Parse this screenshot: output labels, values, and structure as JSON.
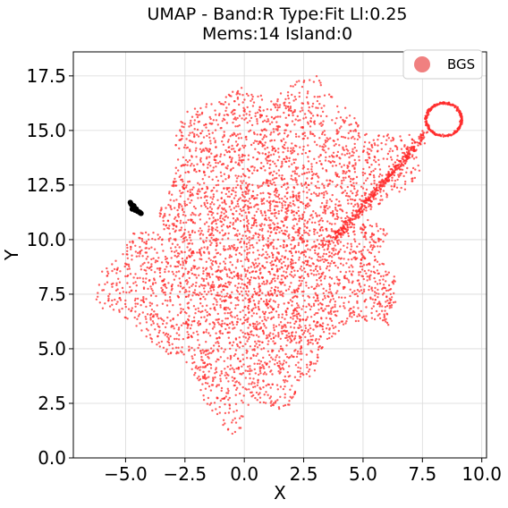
{
  "chart_data": {
    "type": "scatter",
    "title": [
      "UMAP  -  Band:R Type:Fit Ll:0.25",
      "Mems:14 Island:0"
    ],
    "xlabel": "X",
    "ylabel": "Y",
    "xlim": [
      -7.2,
      10.2
    ],
    "ylim": [
      0,
      18.6
    ],
    "x_ticks": [
      -5.0,
      -2.5,
      0.0,
      2.5,
      5.0,
      7.5,
      10.0
    ],
    "x_tick_labels": [
      "−5.0",
      "−2.5",
      "0.0",
      "2.5",
      "5.0",
      "7.5",
      "10.0"
    ],
    "y_ticks": [
      0.0,
      2.5,
      5.0,
      7.5,
      10.0,
      12.5,
      15.0,
      17.5
    ],
    "y_tick_labels": [
      "0.0",
      "2.5",
      "5.0",
      "7.5",
      "10.0",
      "12.5",
      "15.0",
      "17.5"
    ],
    "grid": true,
    "legend": {
      "position": "top-right",
      "entries": [
        {
          "label": "BGS",
          "color": "#f08080"
        }
      ]
    },
    "series": [
      {
        "name": "BGS",
        "color": "#ff2a2a",
        "point_count_approx": 4500,
        "region_polygon": [
          [
            -6.3,
            6.9
          ],
          [
            -6.3,
            8.4
          ],
          [
            -5.2,
            9.2
          ],
          [
            -4.7,
            10.3
          ],
          [
            -3.4,
            10.4
          ],
          [
            -3.6,
            11.2
          ],
          [
            -3.0,
            12.7
          ],
          [
            -2.8,
            13.7
          ],
          [
            -3.1,
            14.8
          ],
          [
            -2.6,
            15.6
          ],
          [
            -2.4,
            16.0
          ],
          [
            -1.3,
            16.4
          ],
          [
            -0.3,
            17.1
          ],
          [
            0.2,
            17.3
          ],
          [
            0.9,
            16.4
          ],
          [
            1.6,
            16.8
          ],
          [
            2.3,
            17.3
          ],
          [
            3.1,
            17.5
          ],
          [
            3.7,
            16.6
          ],
          [
            4.3,
            16.2
          ],
          [
            5.0,
            14.9
          ],
          [
            6.0,
            14.9
          ],
          [
            7.1,
            14.8
          ],
          [
            7.3,
            13.8
          ],
          [
            7.4,
            13.0
          ],
          [
            6.8,
            12.3
          ],
          [
            6.0,
            11.8
          ],
          [
            5.0,
            11.0
          ],
          [
            6.2,
            10.4
          ],
          [
            5.6,
            9.1
          ],
          [
            6.3,
            8.6
          ],
          [
            6.5,
            7.1
          ],
          [
            6.2,
            6.0
          ],
          [
            5.0,
            6.3
          ],
          [
            4.2,
            6.0
          ],
          [
            3.4,
            5.3
          ],
          [
            3.0,
            3.8
          ],
          [
            2.3,
            3.4
          ],
          [
            1.8,
            2.0
          ],
          [
            1.2,
            2.3
          ],
          [
            0.3,
            2.7
          ],
          [
            -0.2,
            1.1
          ],
          [
            -0.6,
            1.0
          ],
          [
            -1.2,
            2.0
          ],
          [
            -1.8,
            2.5
          ],
          [
            -2.2,
            3.8
          ],
          [
            -2.8,
            4.4
          ],
          [
            -3.9,
            5.3
          ],
          [
            -4.6,
            6.0
          ],
          [
            -5.5,
            6.5
          ]
        ],
        "loop": {
          "center": [
            8.4,
            15.5
          ],
          "rx": 0.75,
          "ry": 0.75
        }
      },
      {
        "color": "#000000",
        "points": [
          [
            -4.8,
            11.7
          ],
          [
            -4.75,
            11.6
          ],
          [
            -4.7,
            11.5
          ],
          [
            -4.72,
            11.4
          ],
          [
            -4.6,
            11.35
          ],
          [
            -4.5,
            11.3
          ],
          [
            -4.4,
            11.25
          ],
          [
            -4.35,
            11.2
          ],
          [
            -4.65,
            11.55
          ],
          [
            -4.55,
            11.4
          ],
          [
            -4.78,
            11.65
          ],
          [
            -4.45,
            11.28
          ],
          [
            -4.62,
            11.45
          ],
          [
            -4.38,
            11.22
          ]
        ]
      }
    ]
  }
}
